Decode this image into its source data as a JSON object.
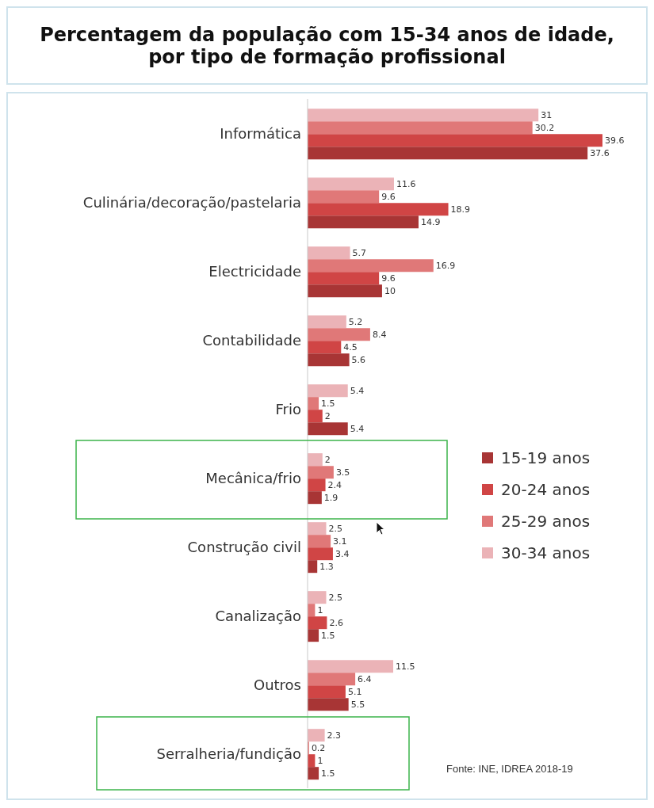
{
  "chart_data": {
    "type": "bar",
    "orientation": "horizontal",
    "title": "Percentagem da população com 15-34 anos de idade,\npor tipo de formação profissional",
    "categories": [
      "Informática",
      "Culinária/decoração/pastelaria",
      "Electricidade",
      "Contabilidade",
      "Frio",
      "Mecânica/frio",
      "Construção civil",
      "Canalização",
      "Outros",
      "Serralheria/fundição"
    ],
    "series": [
      {
        "name": "30-34 anos",
        "color": "#ebb3b7",
        "values": [
          31,
          11.6,
          5.7,
          5.2,
          5.4,
          2,
          2.5,
          2.5,
          11.5,
          2.3
        ]
      },
      {
        "name": "25-29 anos",
        "color": "#e07878",
        "values": [
          30.2,
          9.6,
          16.9,
          8.4,
          1.5,
          3.5,
          3.1,
          1,
          6.4,
          0.2
        ]
      },
      {
        "name": "20-24 anos",
        "color": "#d04545",
        "values": [
          39.6,
          18.9,
          9.6,
          4.5,
          2,
          2.4,
          3.4,
          2.6,
          5.1,
          1
        ]
      },
      {
        "name": "15-19 anos",
        "color": "#a83535",
        "values": [
          37.6,
          14.9,
          10,
          5.6,
          5.4,
          1.9,
          1.3,
          1.5,
          5.5,
          1.5
        ]
      }
    ],
    "tick_labels": "y",
    "data_labels": true,
    "legend": "right",
    "grid": false,
    "annotations": [
      "Fonte: INE, IDREA 2018-19"
    ]
  }
}
